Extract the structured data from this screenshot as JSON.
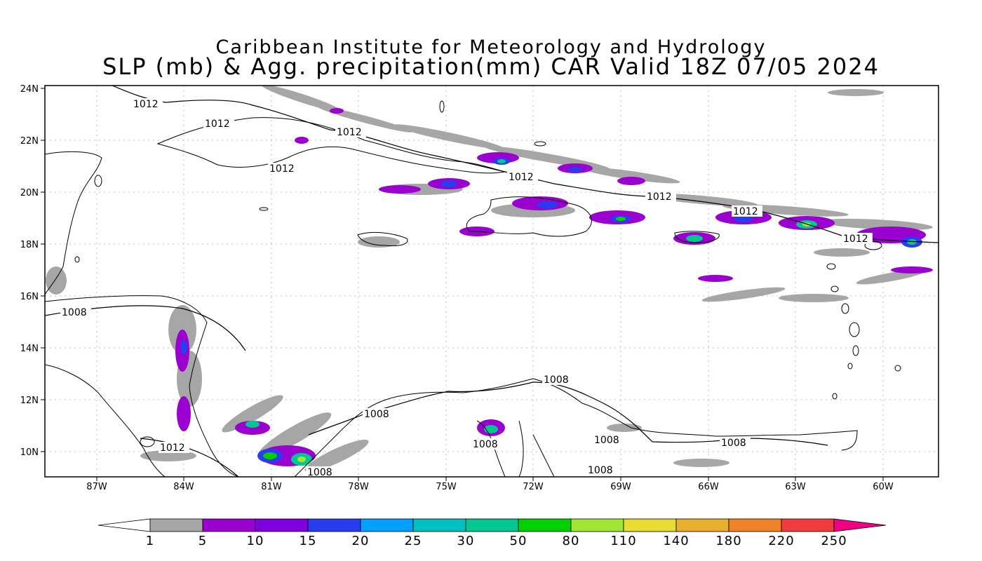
{
  "title_line1": "Caribbean Institute for Meteorology and Hydrology",
  "title_line2": "SLP (mb) & Agg. precipitation(mm) CAR Valid 18Z 07/05 2024",
  "lat_ticks": [
    "24N",
    "22N",
    "20N",
    "18N",
    "16N",
    "14N",
    "12N",
    "10N"
  ],
  "lon_ticks": [
    "87W",
    "84W",
    "81W",
    "78W",
    "75W",
    "72W",
    "69W",
    "66W",
    "63W",
    "60W"
  ],
  "isobar_labels": [
    "1012",
    "1012",
    "1012",
    "1012",
    "1012",
    "1012",
    "1012",
    "1012",
    "1008",
    "1008",
    "1008",
    "1008",
    "1012",
    "1008",
    "1008",
    "1008",
    "1008"
  ],
  "colorbar": {
    "labels": [
      "1",
      "5",
      "10",
      "15",
      "20",
      "25",
      "30",
      "50",
      "80",
      "110",
      "140",
      "180",
      "220",
      "250"
    ],
    "colors": [
      "#ffffff",
      "#a6a6a6",
      "#9a00d0",
      "#8000e0",
      "#2a3cf0",
      "#00a0ff",
      "#00c0c0",
      "#00c890",
      "#00d000",
      "#a0e632",
      "#e6dc32",
      "#e6af2d",
      "#f08228",
      "#f03c3c",
      "#f00082"
    ]
  }
}
